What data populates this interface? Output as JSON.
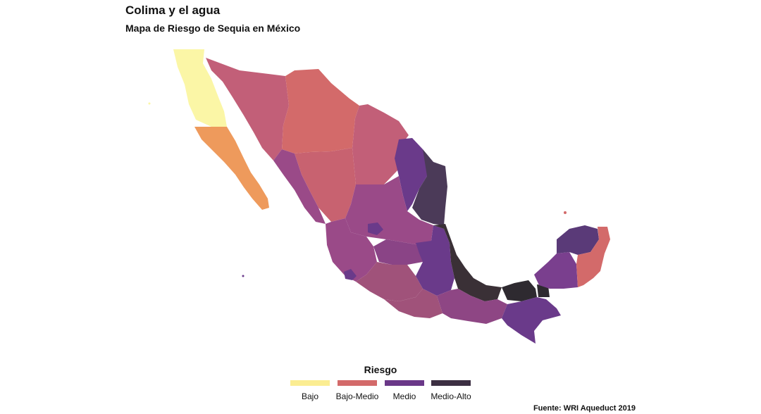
{
  "title": "Colima y el agua",
  "subtitle": "Mapa de Riesgo de Sequia en México",
  "legend": {
    "title": "Riesgo",
    "items": [
      {
        "label": "Bajo",
        "color": "#fbed92"
      },
      {
        "label": "Bajo-Medio",
        "color": "#d36a6a"
      },
      {
        "label": "Medio",
        "color": "#6a3888"
      },
      {
        "label": "Medio-Alto",
        "color": "#3c2f42"
      }
    ]
  },
  "caption": "Fuente: WRI Aqueduct 2019",
  "palette": {
    "bajo": "#fbf6a6",
    "bajo_medio_orange": "#ee9a5c",
    "bajo_medio_red": "#d36a6a",
    "bajo_medio_pink": "#c25f78",
    "medio_magenta": "#9a4a88",
    "medio_purple": "#6a3a8a",
    "medio_alto": "#4b3a58",
    "alto": "#2e2a30"
  }
}
